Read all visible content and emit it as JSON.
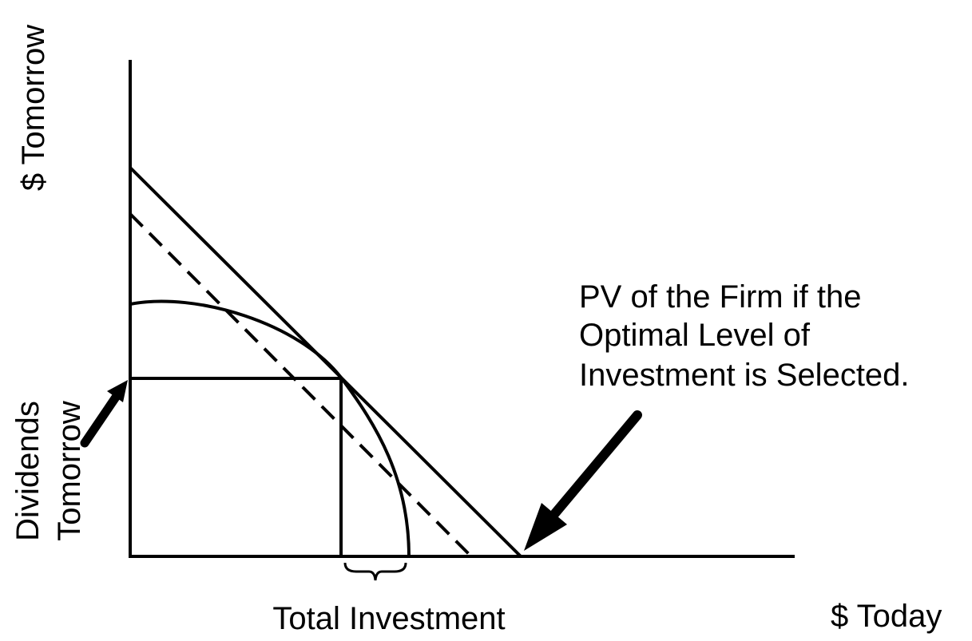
{
  "y_axis_label": "$ Tomorrow",
  "x_axis_label": "$ Today",
  "dividends_label": [
    "Dividends",
    "Tomorrow"
  ],
  "investment_label": "Total Investment",
  "annotation": [
    "PV of the Firm if the",
    "Optimal Level of",
    "Investment is Selected."
  ]
}
